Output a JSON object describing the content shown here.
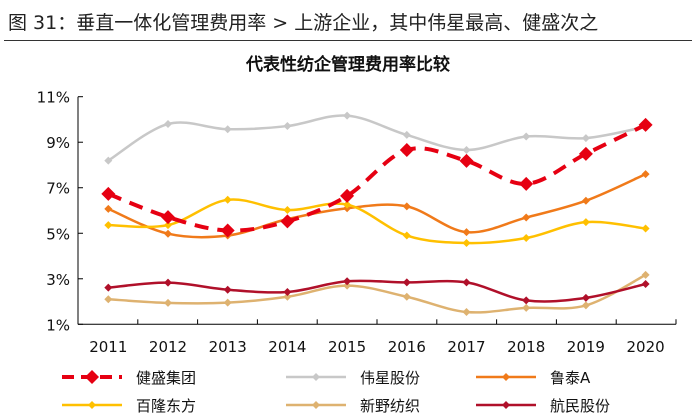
{
  "figure_title": "图 31：垂直一体化管理费用率 > 上游企业，其中伟星最高、健盛次之",
  "chart_data": {
    "type": "line",
    "title": "代表性纺企管理费用率比较",
    "xlabel": "",
    "ylabel": "",
    "categories": [
      "2011",
      "2012",
      "2013",
      "2014",
      "2015",
      "2016",
      "2017",
      "2018",
      "2019",
      "2020"
    ],
    "ylim": [
      1,
      11
    ],
    "yticks": [
      "1%",
      "3%",
      "5%",
      "7%",
      "9%",
      "11%"
    ],
    "grid": false,
    "legend": "bottom",
    "series": [
      {
        "name": "健盛集团",
        "color": "#e60012",
        "dashed": true,
        "values": [
          6.73,
          5.71,
          5.12,
          5.52,
          6.64,
          8.66,
          8.18,
          7.17,
          8.49,
          9.76
        ]
      },
      {
        "name": "伟星股份",
        "color": "#c8c8c8",
        "values": [
          8.19,
          9.8,
          9.57,
          9.71,
          10.17,
          9.32,
          8.66,
          9.25,
          9.18,
          9.68
        ]
      },
      {
        "name": "鲁泰A",
        "color": "#f07a1a",
        "values": [
          6.07,
          4.98,
          4.9,
          5.62,
          6.1,
          6.18,
          5.05,
          5.69,
          6.43,
          7.6
        ]
      },
      {
        "name": "百隆东方",
        "color": "#ffc000",
        "values": [
          5.36,
          5.36,
          6.47,
          6.02,
          6.26,
          4.9,
          4.57,
          4.79,
          5.49,
          5.21
        ]
      },
      {
        "name": "新野纺织",
        "color": "#deb270",
        "values": [
          2.1,
          1.94,
          1.95,
          2.21,
          2.7,
          2.21,
          1.54,
          1.72,
          1.83,
          3.17
        ]
      },
      {
        "name": "航民股份",
        "color": "#b0102a",
        "values": [
          2.61,
          2.83,
          2.52,
          2.42,
          2.89,
          2.84,
          2.84,
          2.05,
          2.16,
          2.77
        ]
      }
    ]
  }
}
